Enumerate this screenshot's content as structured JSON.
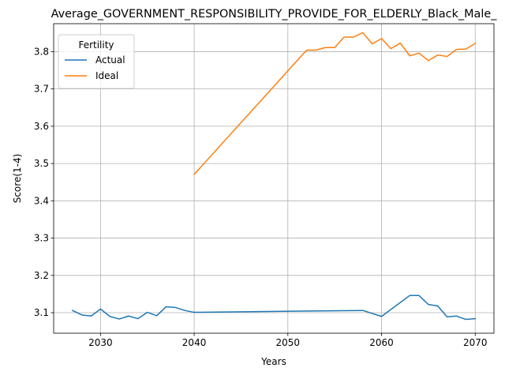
{
  "chart_data": {
    "type": "line",
    "title": "Average_GOVERNMENT_RESPONSIBILITY_PROVIDE_FOR_ELDERLY_Black_Male_",
    "xlabel": "Years",
    "ylabel": "Score(1-4)",
    "xlim": [
      2025,
      2072
    ],
    "ylim": [
      3.045,
      3.875
    ],
    "xticks": [
      2030,
      2040,
      2050,
      2060,
      2070
    ],
    "yticks": [
      3.1,
      3.2,
      3.3,
      3.4,
      3.5,
      3.6,
      3.7,
      3.8
    ],
    "grid": true,
    "legend": {
      "title": "Fertility",
      "placement": "upper-left"
    },
    "series": [
      {
        "name": "Actual",
        "color": "#1f77b4",
        "x": [
          2027,
          2028,
          2029,
          2030,
          2031,
          2032,
          2033,
          2034,
          2035,
          2036,
          2037,
          2038,
          2039,
          2040,
          2058,
          2060,
          2063,
          2064,
          2065,
          2066,
          2067,
          2068,
          2069,
          2070
        ],
        "y": [
          3.106,
          3.094,
          3.091,
          3.11,
          3.09,
          3.083,
          3.091,
          3.084,
          3.101,
          3.092,
          3.116,
          3.114,
          3.106,
          3.101,
          3.106,
          3.09,
          3.146,
          3.146,
          3.122,
          3.118,
          3.089,
          3.091,
          3.082,
          3.084
        ]
      },
      {
        "name": "Ideal",
        "color": "#ff7f0e",
        "x": [
          2040,
          2052,
          2053,
          2054,
          2055,
          2056,
          2057,
          2058,
          2059,
          2060,
          2061,
          2062,
          2063,
          2064,
          2065,
          2066,
          2067,
          2068,
          2069,
          2070
        ],
        "y": [
          3.471,
          3.804,
          3.804,
          3.811,
          3.811,
          3.839,
          3.839,
          3.851,
          3.821,
          3.835,
          3.808,
          3.823,
          3.789,
          3.796,
          3.776,
          3.791,
          3.787,
          3.806,
          3.807,
          3.822
        ]
      }
    ]
  }
}
